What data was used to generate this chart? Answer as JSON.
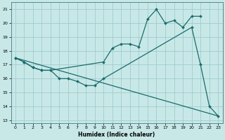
{
  "xlabel": "Humidex (Indice chaleur)",
  "xlim": [
    -0.5,
    23.5
  ],
  "ylim": [
    12.8,
    21.5
  ],
  "yticks": [
    13,
    14,
    15,
    16,
    17,
    18,
    19,
    20,
    21
  ],
  "xticks": [
    0,
    1,
    2,
    3,
    4,
    5,
    6,
    7,
    8,
    9,
    10,
    11,
    12,
    13,
    14,
    15,
    16,
    17,
    18,
    19,
    20,
    21,
    22,
    23
  ],
  "background_color": "#c8e8e8",
  "grid_color": "#a0cccc",
  "line_color": "#1a6b6b",
  "line1_x": [
    0,
    1,
    2,
    3,
    4,
    10,
    11,
    12,
    13,
    14,
    15,
    16,
    17,
    18,
    19,
    20,
    21
  ],
  "line1_y": [
    17.5,
    17.2,
    16.8,
    16.6,
    16.6,
    17.2,
    18.2,
    18.5,
    18.5,
    18.3,
    20.3,
    21.0,
    20.0,
    20.2,
    19.7,
    20.5,
    20.5
  ],
  "line2_x": [
    0,
    1,
    2,
    3,
    4,
    5,
    6,
    7,
    8,
    9,
    10,
    20,
    21,
    22,
    23
  ],
  "line2_y": [
    17.5,
    17.2,
    16.8,
    16.6,
    16.6,
    16.0,
    16.0,
    15.8,
    15.5,
    15.5,
    16.0,
    19.7,
    17.0,
    14.0,
    13.3
  ],
  "line3_x": [
    0,
    23
  ],
  "line3_y": [
    17.5,
    13.3
  ]
}
